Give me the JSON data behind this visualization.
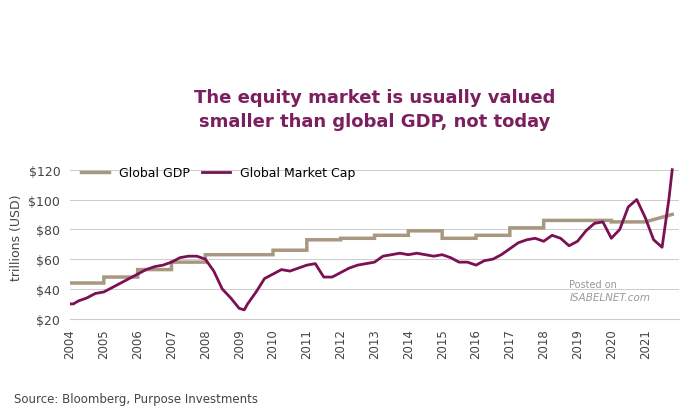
{
  "title_line1": "The equity market is usually valued",
  "title_line2": "smaller than global GDP, not today",
  "title_color": "#7B1F5E",
  "source_text": "Source: Bloomberg, Purpose Investments",
  "ylabel": "trillions (USD)",
  "background_color": "#ffffff",
  "gdp_color": "#a89880",
  "mktcap_color": "#7B1054",
  "gdp_label": "Global GDP",
  "mktcap_label": "Global Market Cap",
  "ylim": [
    20,
    130
  ],
  "yticks": [
    20,
    40,
    60,
    80,
    100,
    120
  ],
  "gdp_data": {
    "years": [
      2004,
      2005,
      2005,
      2006,
      2006,
      2007,
      2007,
      2008,
      2008,
      2009,
      2009,
      2010,
      2010,
      2011,
      2011,
      2012,
      2012,
      2013,
      2013,
      2014,
      2014,
      2015,
      2015,
      2016,
      2016,
      2017,
      2017,
      2018,
      2018,
      2019,
      2019,
      2020,
      2020,
      2021,
      2021.8
    ],
    "values": [
      44,
      44,
      48,
      48,
      53,
      53,
      58,
      58,
      63,
      63,
      63,
      63,
      66,
      66,
      73,
      73,
      74,
      74,
      76,
      76,
      79,
      79,
      74,
      74,
      76,
      76,
      81,
      81,
      86,
      86,
      86,
      86,
      85,
      85,
      90
    ]
  },
  "mktcap_years": [
    2004.0,
    2004.1,
    2004.25,
    2004.5,
    2004.75,
    2005.0,
    2005.25,
    2005.5,
    2005.75,
    2006.0,
    2006.25,
    2006.5,
    2006.75,
    2007.0,
    2007.25,
    2007.5,
    2007.75,
    2008.0,
    2008.25,
    2008.5,
    2008.75,
    2009.0,
    2009.15,
    2009.25,
    2009.5,
    2009.75,
    2010.0,
    2010.25,
    2010.5,
    2010.75,
    2011.0,
    2011.25,
    2011.5,
    2011.75,
    2012.0,
    2012.25,
    2012.5,
    2012.75,
    2013.0,
    2013.25,
    2013.5,
    2013.75,
    2014.0,
    2014.25,
    2014.5,
    2014.75,
    2015.0,
    2015.25,
    2015.5,
    2015.75,
    2016.0,
    2016.25,
    2016.5,
    2016.75,
    2017.0,
    2017.25,
    2017.5,
    2017.75,
    2018.0,
    2018.25,
    2018.5,
    2018.75,
    2019.0,
    2019.25,
    2019.5,
    2019.75,
    2020.0,
    2020.25,
    2020.5,
    2020.75,
    2021.0,
    2021.25,
    2021.5,
    2021.7,
    2021.8
  ],
  "mktcap_values": [
    30,
    30,
    32,
    34,
    37,
    38,
    41,
    44,
    47,
    50,
    53,
    55,
    56,
    58,
    61,
    62,
    62,
    60,
    52,
    40,
    34,
    27,
    26,
    30,
    38,
    47,
    50,
    53,
    52,
    54,
    56,
    57,
    48,
    48,
    51,
    54,
    56,
    57,
    58,
    62,
    63,
    64,
    63,
    64,
    63,
    62,
    63,
    61,
    58,
    58,
    56,
    59,
    60,
    63,
    67,
    71,
    73,
    74,
    72,
    76,
    74,
    69,
    72,
    79,
    84,
    85,
    74,
    80,
    95,
    100,
    88,
    73,
    68,
    100,
    120
  ]
}
